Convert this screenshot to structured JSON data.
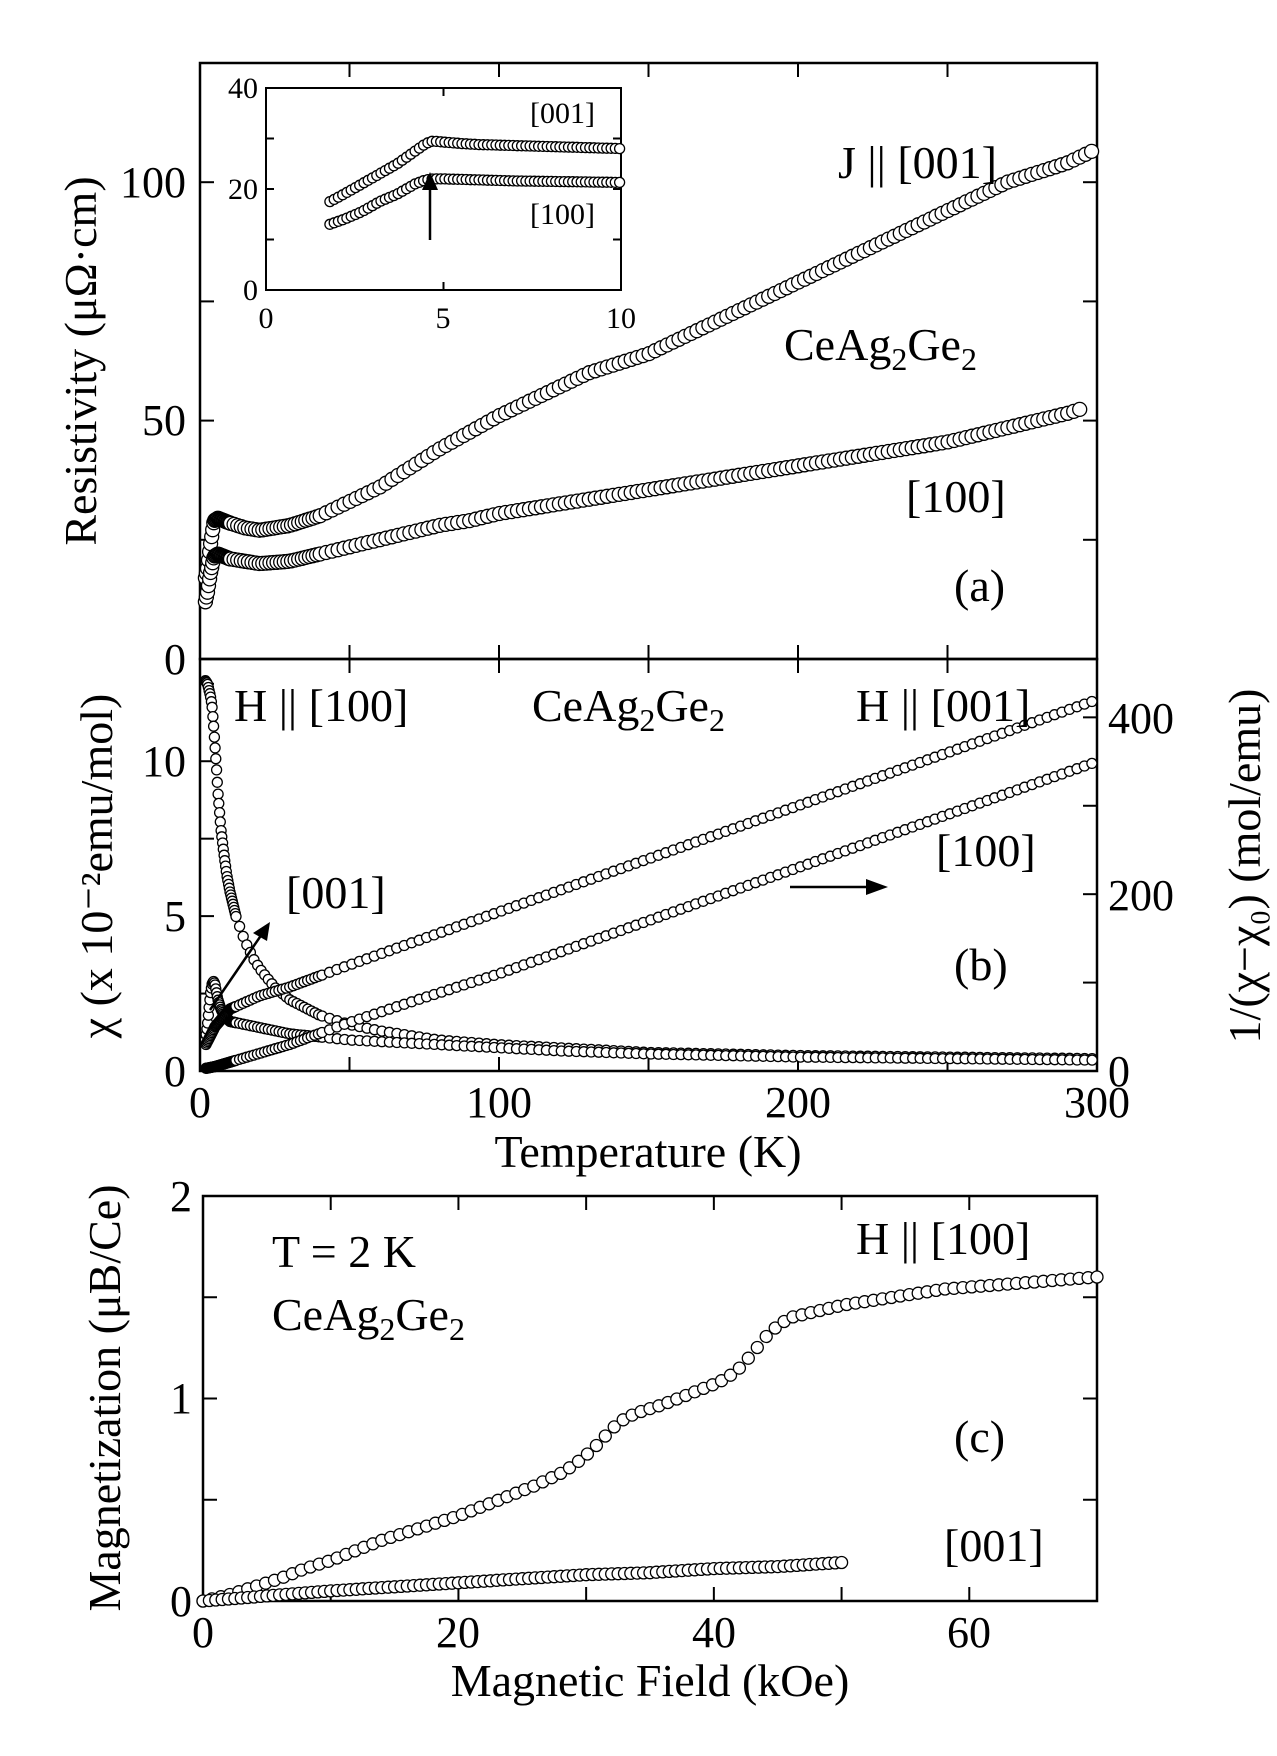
{
  "chart_data": [
    {
      "panel": "a",
      "type": "scatter",
      "panel_label": "(a)",
      "ylabel": "Resistivity (μΩ·cm)",
      "xlim": [
        0,
        300
      ],
      "ylim": [
        0,
        125
      ],
      "yticks": [
        "0",
        "50",
        "100"
      ],
      "annotations": {
        "current": "J || [001]",
        "compound": "CeAg",
        "compound_sub1": "2",
        "compound_mid": "Ge",
        "compound_sub2": "2",
        "series100_label": "[100]"
      },
      "series": [
        {
          "name": "[001]",
          "x": [
            1.8,
            2.5,
            3.5,
            4.7,
            6,
            8,
            10,
            15,
            20,
            30,
            40,
            50,
            60,
            70,
            80,
            90,
            100,
            110,
            120,
            130,
            140,
            150,
            160,
            170,
            180,
            190,
            200,
            210,
            220,
            230,
            240,
            250,
            260,
            270,
            280,
            290,
            300
          ],
          "y": [
            17,
            19,
            24,
            29,
            29.5,
            29,
            28.5,
            27.5,
            27,
            28,
            30,
            33,
            36,
            40,
            44,
            47.5,
            51,
            54,
            57,
            60,
            62,
            64,
            67,
            70,
            73,
            76,
            79,
            82,
            85,
            88,
            91,
            94,
            97,
            100,
            102,
            104,
            107
          ]
        },
        {
          "name": "[100]",
          "x": [
            1.8,
            2.5,
            3.5,
            4.7,
            6,
            8,
            10,
            15,
            20,
            30,
            40,
            50,
            60,
            70,
            80,
            90,
            100,
            110,
            120,
            130,
            140,
            150,
            160,
            170,
            180,
            190,
            200,
            210,
            220,
            230,
            240,
            250,
            260,
            270,
            280,
            290,
            295
          ],
          "y": [
            12,
            14,
            18,
            21.5,
            22,
            21.5,
            21,
            20.5,
            20,
            20.5,
            22,
            23.5,
            25,
            26.5,
            28,
            29,
            30.5,
            31.5,
            32.5,
            33.5,
            34.5,
            35.5,
            36.5,
            37.5,
            38.5,
            39.5,
            40.5,
            41.5,
            42.5,
            43.5,
            44.5,
            45.5,
            47,
            48.5,
            50,
            51.5,
            52.5
          ]
        }
      ],
      "inset": {
        "xlim": [
          0,
          10
        ],
        "ylim": [
          0,
          40
        ],
        "xticks": [
          "0",
          "5",
          "10"
        ],
        "yticks": [
          "0",
          "20",
          "40"
        ],
        "labels": {
          "s001": "[001]",
          "s100": "[100]"
        },
        "series": [
          {
            "name": "[001]",
            "x": [
              1.8,
              2.2,
              2.7,
              3.2,
              3.7,
              4.2,
              4.5,
              4.7,
              5,
              5.5,
              6,
              7,
              8,
              9,
              10
            ],
            "y": [
              17.5,
              19,
              21,
              23,
              25,
              27.5,
              29,
              29.5,
              29.3,
              29,
              28.8,
              28.6,
              28.4,
              28.2,
              28
            ]
          },
          {
            "name": "[100]",
            "x": [
              1.8,
              2.2,
              2.7,
              3.2,
              3.7,
              4.2,
              4.5,
              4.7,
              5,
              5.5,
              6,
              7,
              8,
              9,
              10
            ],
            "y": [
              13,
              14,
              15.5,
              17.5,
              19,
              21,
              21.8,
              22,
              22,
              21.9,
              21.8,
              21.6,
              21.5,
              21.4,
              21.3
            ]
          }
        ]
      }
    },
    {
      "panel": "b",
      "type": "scatter",
      "panel_label": "(b)",
      "xlabel": "Temperature (K)",
      "ylabel": "χ (x 10⁻²emu/mol)",
      "ylabel_right": "1/(χ−χ₀) (mol/emu)",
      "xlim": [
        0,
        300
      ],
      "ylim": [
        0,
        13.3
      ],
      "ylim_right": [
        0,
        466
      ],
      "xticks": [
        "0",
        "100",
        "200",
        "300"
      ],
      "yticks": [
        "0",
        "5",
        "10"
      ],
      "yticks_right": [
        "0",
        "200",
        "400"
      ],
      "annotations": {
        "field100": "H || [100]",
        "field001": "H || [001]",
        "compound": "CeAg",
        "compound_sub1": "2",
        "compound_mid": "Ge",
        "compound_sub2": "2",
        "label001": "[001]",
        "label100": "[100]"
      },
      "series": [
        {
          "name": "χ H||[100]",
          "axis": "left",
          "x": [
            1.8,
            2.5,
            3,
            3.5,
            4,
            4.5,
            5,
            5.5,
            6,
            7,
            8,
            9,
            10,
            12,
            15,
            18,
            20,
            25,
            30,
            40,
            50,
            60,
            80,
            100,
            120,
            150,
            200,
            250,
            300
          ],
          "y": [
            12.6,
            12.5,
            12.3,
            12.1,
            11.8,
            11.2,
            10.5,
            9.8,
            9.0,
            7.8,
            7.0,
            6.3,
            5.8,
            5.0,
            4.2,
            3.6,
            3.3,
            2.7,
            2.3,
            1.8,
            1.5,
            1.3,
            1.0,
            0.85,
            0.75,
            0.6,
            0.5,
            0.45,
            0.4
          ]
        },
        {
          "name": "χ H||[001]",
          "axis": "left",
          "x": [
            1.8,
            2.5,
            3,
            3.5,
            4,
            4.5,
            5,
            6,
            7,
            8,
            10,
            15,
            20,
            25,
            30,
            40,
            50,
            60,
            80,
            100,
            120,
            150,
            200,
            250,
            300
          ],
          "y": [
            1.0,
            1.5,
            2.0,
            2.5,
            2.8,
            2.9,
            2.8,
            2.3,
            2.0,
            1.8,
            1.6,
            1.5,
            1.4,
            1.3,
            1.2,
            1.1,
            1.0,
            0.95,
            0.85,
            0.75,
            0.65,
            0.55,
            0.45,
            0.4,
            0.35
          ]
        },
        {
          "name": "1/(χ−χ₀) H||[001]",
          "axis": "right",
          "x": [
            2,
            5,
            10,
            20,
            30,
            50,
            75,
            100,
            125,
            150,
            175,
            200,
            225,
            250,
            275,
            300
          ],
          "y": [
            30,
            50,
            70,
            85,
            95,
            120,
            150,
            180,
            210,
            240,
            270,
            300,
            330,
            360,
            390,
            420
          ]
        },
        {
          "name": "1/(χ−χ₀) H||[100]",
          "axis": "right",
          "x": [
            2,
            5,
            10,
            20,
            30,
            50,
            75,
            100,
            125,
            150,
            175,
            200,
            225,
            250,
            275,
            300
          ],
          "y": [
            3,
            5,
            10,
            20,
            30,
            55,
            83,
            110,
            140,
            170,
            200,
            230,
            260,
            290,
            320,
            350
          ]
        }
      ]
    },
    {
      "panel": "c",
      "type": "scatter",
      "panel_label": "(c)",
      "xlabel": "Magnetic Field (kOe)",
      "ylabel": "Magnetization (μB/Ce)",
      "xlim": [
        0,
        70
      ],
      "ylim": [
        0,
        2
      ],
      "xticks": [
        "0",
        "20",
        "40",
        "60"
      ],
      "yticks": [
        "0",
        "1",
        "2"
      ],
      "annotations": {
        "temp": "T = 2 K",
        "compound": "CeAg",
        "compound_sub1": "2",
        "compound_mid": "Ge",
        "compound_sub2": "2",
        "field100": "H || [100]",
        "label001": "[001]"
      },
      "series": [
        {
          "name": "H||[100]",
          "x": [
            0,
            2,
            4,
            6,
            8,
            10,
            12,
            14,
            16,
            18,
            20,
            22,
            24,
            26,
            28,
            29,
            30,
            31,
            32,
            33,
            34,
            36,
            38,
            40,
            41,
            42,
            43,
            44,
            45,
            46,
            48,
            50,
            52,
            54,
            56,
            58,
            60,
            62,
            64,
            66,
            68,
            70
          ],
          "y": [
            0,
            0.03,
            0.07,
            0.11,
            0.16,
            0.2,
            0.25,
            0.3,
            0.34,
            0.38,
            0.42,
            0.47,
            0.52,
            0.57,
            0.63,
            0.67,
            0.72,
            0.78,
            0.85,
            0.9,
            0.93,
            0.97,
            1.02,
            1.07,
            1.1,
            1.15,
            1.22,
            1.3,
            1.36,
            1.4,
            1.43,
            1.46,
            1.48,
            1.5,
            1.52,
            1.54,
            1.55,
            1.56,
            1.57,
            1.58,
            1.59,
            1.6
          ]
        },
        {
          "name": "H||[001]",
          "x": [
            0,
            2,
            4,
            6,
            8,
            10,
            15,
            20,
            25,
            30,
            35,
            40,
            45,
            50
          ],
          "y": [
            0,
            0.01,
            0.02,
            0.03,
            0.04,
            0.05,
            0.07,
            0.09,
            0.11,
            0.13,
            0.14,
            0.16,
            0.17,
            0.19
          ]
        }
      ]
    }
  ]
}
